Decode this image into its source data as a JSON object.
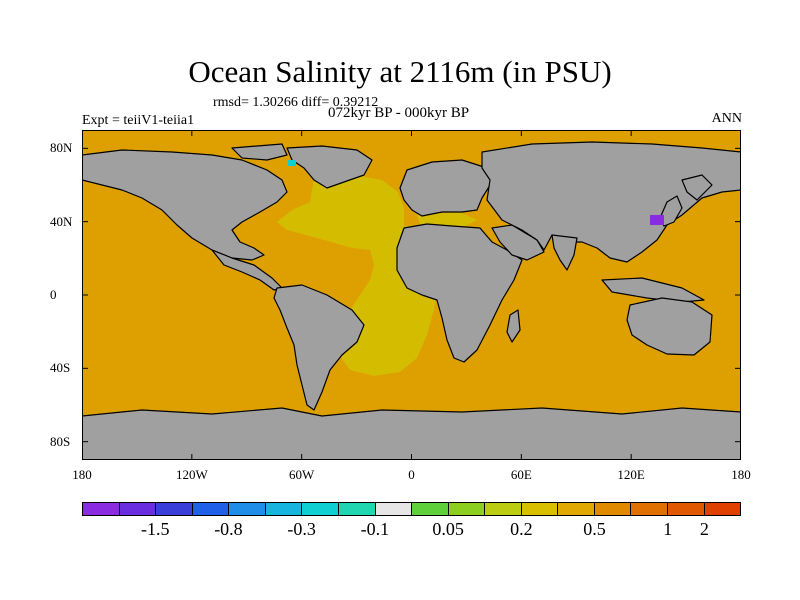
{
  "title": "Ocean Salinity at 2116m (in PSU)",
  "stats": "rmsd= 1.30266 diff= 0.39212",
  "period": "072kyr BP - 000kyr BP",
  "expt": "Expt = teiiV1-teiia1",
  "season": "ANN",
  "lat_ticks": [
    {
      "label": "80N",
      "lat": 80
    },
    {
      "label": "40N",
      "lat": 40
    },
    {
      "label": "0",
      "lat": 0
    },
    {
      "label": "40S",
      "lat": -40
    },
    {
      "label": "80S",
      "lat": -80
    }
  ],
  "lon_ticks": [
    {
      "label": "180",
      "lon": -180
    },
    {
      "label": "120W",
      "lon": -120
    },
    {
      "label": "60W",
      "lon": -60
    },
    {
      "label": "0",
      "lon": 0
    },
    {
      "label": "60E",
      "lon": 60
    },
    {
      "label": "120E",
      "lon": 120
    },
    {
      "label": "180",
      "lon": 180
    }
  ],
  "colorbar": {
    "colors": [
      "#8a2be2",
      "#6a2ee0",
      "#3b3fd9",
      "#2060e8",
      "#1e8ee8",
      "#18b4e0",
      "#10cfd2",
      "#20d6b0",
      "#e6e6e6",
      "#5fcf3a",
      "#8ccf1e",
      "#bccc10",
      "#d8c000",
      "#e0a800",
      "#e08a00",
      "#e07000",
      "#e05800",
      "#e04000"
    ],
    "labels": [
      {
        "text": "-1.5",
        "boundary": 2
      },
      {
        "text": "-0.8",
        "boundary": 4
      },
      {
        "text": "-0.3",
        "boundary": 6
      },
      {
        "text": "-0.1",
        "boundary": 8
      },
      {
        "text": "0.05",
        "boundary": 10
      },
      {
        "text": "0.2",
        "boundary": 12
      },
      {
        "text": "0.5",
        "boundary": 14
      },
      {
        "text": "1",
        "boundary": 16
      },
      {
        "text": "2",
        "boundary": 17
      }
    ]
  },
  "field_colors": {
    "land": "#a0a0a0",
    "ocean_default": "#dda000",
    "atlantic": "#d4bc00",
    "negative_anomaly": "#8a2be2",
    "arctic_spot": "#10cfd2"
  }
}
